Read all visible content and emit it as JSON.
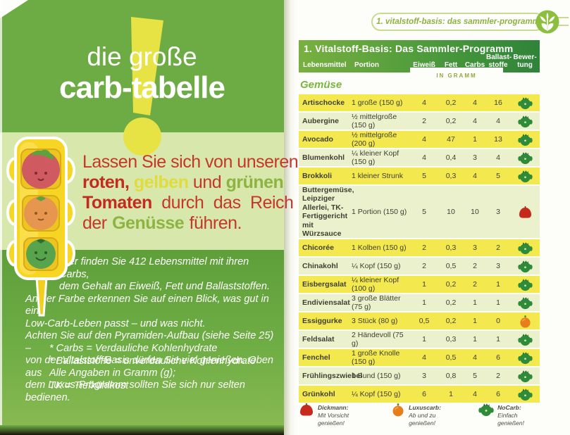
{
  "left_page": {
    "title_line1": "die große",
    "title_line2": "carb-tabelle",
    "intro_lines": [
      [
        {
          "t": "Lassen Sie sich von unseren",
          "c": "r"
        }
      ],
      [
        {
          "t": "roten,",
          "c": "rb"
        },
        {
          "t": " ",
          "c": "r"
        },
        {
          "t": "gelben",
          "c": "yb"
        },
        {
          "t": " und ",
          "c": "r"
        },
        {
          "t": "grünen",
          "c": "gb"
        }
      ],
      [
        {
          "t": "Tomaten",
          "c": "rb"
        },
        {
          "t": " durch das Reich",
          "c": "r"
        }
      ],
      [
        {
          "t": "der ",
          "c": "r"
        },
        {
          "t": "Genüsse",
          "c": "gb"
        },
        {
          "t": " führen.",
          "c": "r"
        }
      ]
    ],
    "paragraph_lines": [
      {
        "t": "Hier finden Sie 412 Lebensmittel mit ihren Carbs,",
        "indent": true
      },
      {
        "t": "dem Gehalt an Eiweiß, Fett und Ballaststoffen.",
        "indent": true
      },
      {
        "t": "An der Farbe erkennen Sie auf einen Blick, was gut in ein",
        "indent": false
      },
      {
        "t": "Low-Carb-Leben passt – und was nicht.",
        "indent": false
      },
      {
        "t": "Achten Sie auf den Pyramiden-Aufbau (siehe Seite 25) –",
        "indent": false
      },
      {
        "t": "von der Vitalstoff-Basis dürfen Sie viel genießen. Oben aus",
        "indent": false
      },
      {
        "t": "dem Luxus-Programm sollten Sie sich nur selten bedienen.",
        "indent": false
      }
    ],
    "footnotes": [
      "* Carbs = Verdauliche Kohlenhydrate",
      "* Ballaststoffe = unverdauliche Kohlenhydrate"
    ],
    "notes": [
      "Alle Angaben in Gramm (g);",
      "TK = Tiefkühlkost"
    ]
  },
  "right_page": {
    "breadcrumb": "1. vitalstoff-basis: das sammler-programm",
    "table": {
      "title": "1. Vitalstoff-Basis: Das Sammler-Programm",
      "columns": [
        "Lebensmittel",
        "Portion",
        "Eiweiß",
        "Fett",
        "Carbs",
        "Ballast-\nstoffe",
        "Bewer-\ntung"
      ],
      "unit_note": "IN GRAMM",
      "section": "Gemüse",
      "rows": [
        {
          "name": "Artischocke",
          "portion": "1 große (150 g)",
          "eiweiss": "4",
          "fett": "0,2",
          "carbs": "4",
          "ballaststoffe": "16",
          "rating": "green"
        },
        {
          "name": "Aubergine",
          "portion": "½ mittelgroße (150 g)",
          "eiweiss": "2",
          "fett": "0,2",
          "carbs": "4",
          "ballaststoffe": "4",
          "rating": "green"
        },
        {
          "name": "Avocado",
          "portion": "½ mittelgroße (200 g)",
          "eiweiss": "4",
          "fett": "47",
          "carbs": "1",
          "ballaststoffe": "13",
          "rating": "green"
        },
        {
          "name": "Blumenkohl",
          "portion": "¼ kleiner Kopf (150 g)",
          "eiweiss": "4",
          "fett": "0,4",
          "carbs": "3",
          "ballaststoffe": "4",
          "rating": "green"
        },
        {
          "name": "Brokkoli",
          "portion": "1 kleiner Strunk",
          "eiweiss": "5",
          "fett": "0,3",
          "carbs": "4",
          "ballaststoffe": "5",
          "rating": "green"
        },
        {
          "name": "Buttergemüse, Leipziger Allerlei, TK-Fertiggericht mit Würzsauce",
          "portion": "1 Portion (150 g)",
          "eiweiss": "5",
          "fett": "10",
          "carbs": "10",
          "ballaststoffe": "3",
          "rating": "red"
        },
        {
          "name": "Chicorée",
          "portion": "1 Kolben (150 g)",
          "eiweiss": "2",
          "fett": "0,3",
          "carbs": "3",
          "ballaststoffe": "2",
          "rating": "green"
        },
        {
          "name": "Chinakohl",
          "portion": "¼ Kopf (150 g)",
          "eiweiss": "2",
          "fett": "0,5",
          "carbs": "2",
          "ballaststoffe": "3",
          "rating": "green"
        },
        {
          "name": "Eisbergsalat",
          "portion": "¼ kleiner Kopf (100 g)",
          "eiweiss": "1",
          "fett": "0,2",
          "carbs": "2",
          "ballaststoffe": "1",
          "rating": "green"
        },
        {
          "name": "Endiviensalat",
          "portion": "3 große Blätter (75 g)",
          "eiweiss": "1",
          "fett": "0,2",
          "carbs": "1",
          "ballaststoffe": "1",
          "rating": "green"
        },
        {
          "name": "Essiggurke",
          "portion": "3 Stück (80 g)",
          "eiweiss": "0,5",
          "fett": "0,2",
          "carbs": "1",
          "ballaststoffe": "0",
          "rating": "orange"
        },
        {
          "name": "Feldsalat",
          "portion": "2 Händevoll (75 g)",
          "eiweiss": "1",
          "fett": "0,3",
          "carbs": "1",
          "ballaststoffe": "1",
          "rating": "green"
        },
        {
          "name": "Fenchel",
          "portion": "1 große Knolle (150 g)",
          "eiweiss": "4",
          "fett": "0,5",
          "carbs": "4",
          "ballaststoffe": "6",
          "rating": "green"
        },
        {
          "name": "Frühlingszwiebel",
          "portion": "1 Bund (150 g)",
          "eiweiss": "3",
          "fett": "0,8",
          "carbs": "5",
          "ballaststoffe": "2",
          "rating": "green"
        },
        {
          "name": "Grünkohl",
          "portion": "¼ Kopf (150 g)",
          "eiweiss": "6",
          "fett": "1",
          "carbs": "4",
          "ballaststoffe": "6",
          "rating": "green"
        }
      ]
    },
    "legend": [
      {
        "icon": "red",
        "label": "Dickmann:",
        "desc": "Mit Vorsicht genießen!"
      },
      {
        "icon": "orange",
        "label": "Luxuscarb:",
        "desc": "Ab und zu genießen!"
      },
      {
        "icon": "green",
        "label": "NoCarb:",
        "desc": "Einfach genießen!"
      }
    ]
  },
  "colors": {
    "page_green": "#6dac44",
    "band_light": "#d8e7ab",
    "band_dark": "#5f9f3a",
    "accent_yellow": "#e8e345",
    "row_yellow": "#f3e84d",
    "row_pale": "#ebf1cd",
    "header_green": "#2f8339",
    "rating_green": "#2e8b3a",
    "rating_red": "#c62a1c",
    "rating_orange": "#e67e1b",
    "text_red": "#c5372c",
    "text_green": "#8db441"
  }
}
